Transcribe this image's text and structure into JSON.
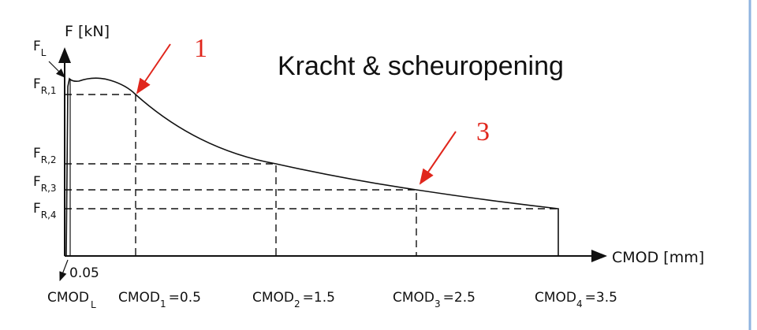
{
  "title": "Kracht & scheuropening",
  "y_axis": "F [kN]",
  "x_axis": "CMOD [mm]",
  "y_labels": [
    {
      "main": "F",
      "sub": "L"
    },
    {
      "main": "F",
      "sub": "R,1"
    },
    {
      "main": "F",
      "sub": "R,2"
    },
    {
      "main": "F",
      "sub": "R,3"
    },
    {
      "main": "F",
      "sub": "R,4"
    }
  ],
  "cmod_l_value": "0.05",
  "x_labels": [
    {
      "main": "CMOD",
      "sub": "L"
    },
    {
      "main": "CMOD",
      "sub": "1",
      "value": "=0.5"
    },
    {
      "main": "CMOD",
      "sub": "2",
      "value": "=1.5"
    },
    {
      "main": "CMOD",
      "sub": "3",
      "value": "=2.5"
    },
    {
      "main": "CMOD",
      "sub": "4",
      "value": "=3.5"
    }
  ],
  "callouts": [
    "1",
    "3"
  ]
}
